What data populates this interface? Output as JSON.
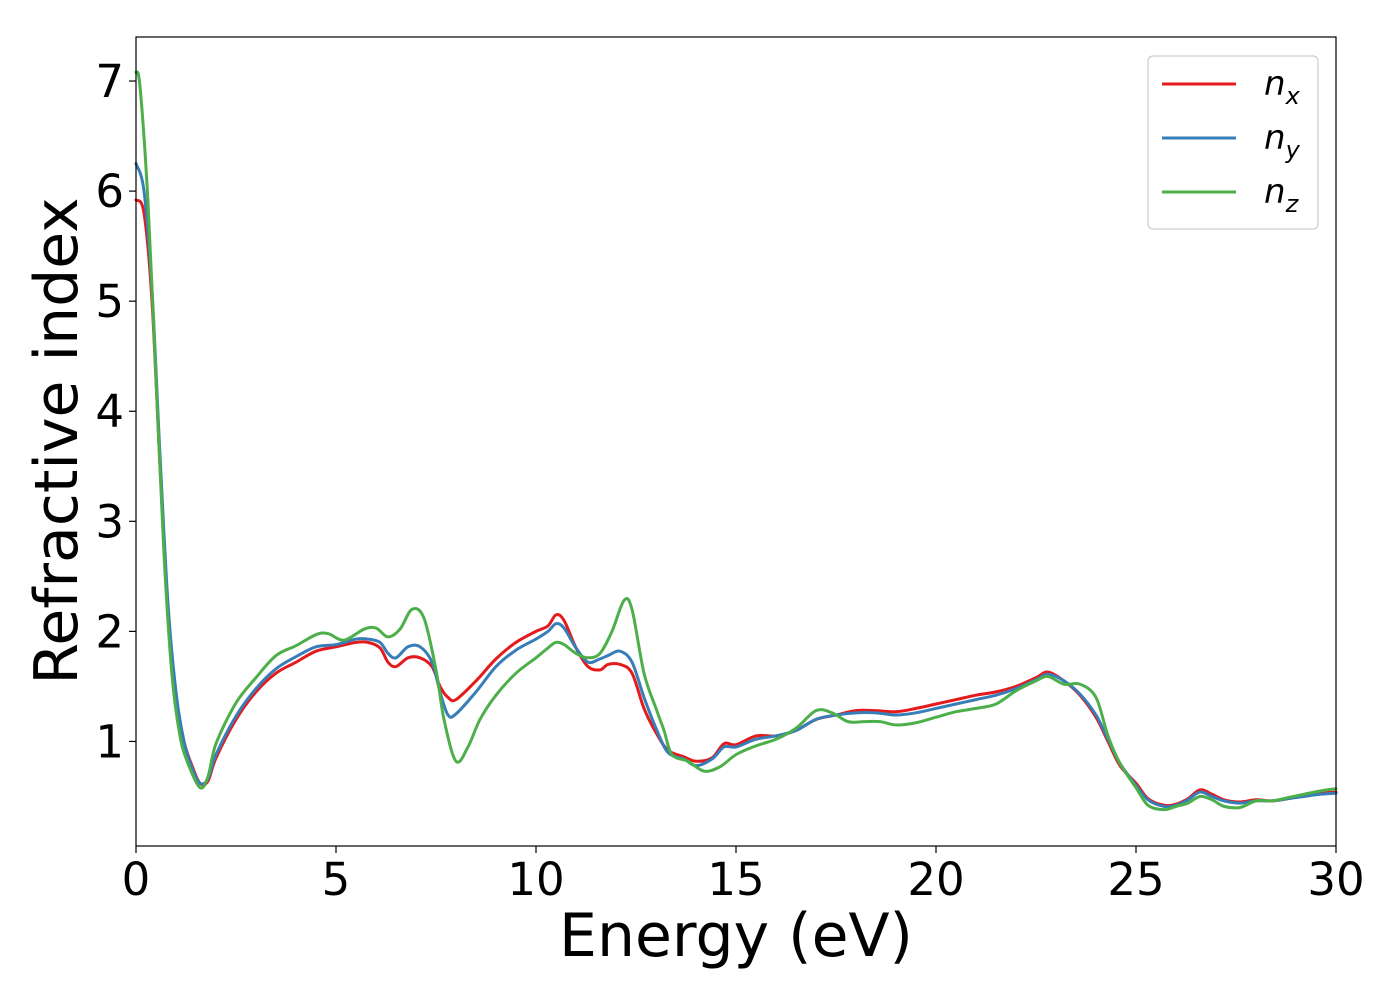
{
  "chart_data": {
    "type": "line",
    "xlabel": "Energy (eV)",
    "ylabel": "Refractive index",
    "xlim": [
      0,
      30
    ],
    "ylim": [
      0.05,
      7.4
    ],
    "xticks": [
      "0",
      "5",
      "10",
      "15",
      "20",
      "25",
      "30"
    ],
    "yticks": [
      "1",
      "2",
      "3",
      "4",
      "5",
      "6",
      "7"
    ],
    "legend_position": "top-right",
    "grid": false,
    "series": [
      {
        "name": "n",
        "subscript": "x",
        "color": "#e41a1c",
        "points": [
          [
            0,
            5.92
          ],
          [
            0.2,
            5.8
          ],
          [
            0.4,
            5.0
          ],
          [
            0.6,
            3.5
          ],
          [
            0.8,
            2.2
          ],
          [
            1.0,
            1.4
          ],
          [
            1.2,
            1.0
          ],
          [
            1.4,
            0.78
          ],
          [
            1.6,
            0.62
          ],
          [
            1.8,
            0.64
          ],
          [
            2.0,
            0.85
          ],
          [
            2.5,
            1.2
          ],
          [
            3.0,
            1.45
          ],
          [
            3.5,
            1.62
          ],
          [
            4.0,
            1.72
          ],
          [
            4.5,
            1.82
          ],
          [
            5.0,
            1.86
          ],
          [
            5.5,
            1.9
          ],
          [
            5.8,
            1.9
          ],
          [
            6.1,
            1.85
          ],
          [
            6.3,
            1.72
          ],
          [
            6.5,
            1.68
          ],
          [
            6.8,
            1.76
          ],
          [
            7.1,
            1.76
          ],
          [
            7.4,
            1.68
          ],
          [
            7.6,
            1.5
          ],
          [
            7.8,
            1.4
          ],
          [
            8.0,
            1.38
          ],
          [
            8.5,
            1.55
          ],
          [
            9.0,
            1.75
          ],
          [
            9.5,
            1.9
          ],
          [
            10.0,
            2.0
          ],
          [
            10.3,
            2.05
          ],
          [
            10.5,
            2.15
          ],
          [
            10.7,
            2.1
          ],
          [
            11.0,
            1.85
          ],
          [
            11.3,
            1.68
          ],
          [
            11.6,
            1.65
          ],
          [
            11.8,
            1.7
          ],
          [
            12.1,
            1.7
          ],
          [
            12.4,
            1.62
          ],
          [
            12.7,
            1.3
          ],
          [
            13.0,
            1.08
          ],
          [
            13.3,
            0.92
          ],
          [
            13.7,
            0.86
          ],
          [
            14.0,
            0.82
          ],
          [
            14.4,
            0.85
          ],
          [
            14.7,
            0.98
          ],
          [
            15.0,
            0.97
          ],
          [
            15.5,
            1.05
          ],
          [
            16.0,
            1.05
          ],
          [
            16.5,
            1.1
          ],
          [
            17.0,
            1.2
          ],
          [
            17.5,
            1.24
          ],
          [
            18.0,
            1.28
          ],
          [
            18.5,
            1.28
          ],
          [
            19.0,
            1.27
          ],
          [
            19.5,
            1.3
          ],
          [
            20.0,
            1.34
          ],
          [
            20.5,
            1.38
          ],
          [
            21.0,
            1.42
          ],
          [
            21.5,
            1.45
          ],
          [
            22.0,
            1.5
          ],
          [
            22.5,
            1.58
          ],
          [
            22.8,
            1.63
          ],
          [
            23.2,
            1.55
          ],
          [
            23.6,
            1.42
          ],
          [
            24.0,
            1.22
          ],
          [
            24.3,
            1.0
          ],
          [
            24.6,
            0.78
          ],
          [
            25.0,
            0.62
          ],
          [
            25.3,
            0.48
          ],
          [
            25.7,
            0.42
          ],
          [
            26.0,
            0.43
          ],
          [
            26.3,
            0.48
          ],
          [
            26.6,
            0.56
          ],
          [
            26.9,
            0.52
          ],
          [
            27.2,
            0.47
          ],
          [
            27.6,
            0.45
          ],
          [
            28.0,
            0.47
          ],
          [
            28.4,
            0.46
          ],
          [
            28.8,
            0.48
          ],
          [
            29.2,
            0.51
          ],
          [
            29.6,
            0.53
          ],
          [
            30.0,
            0.54
          ]
        ]
      },
      {
        "name": "n",
        "subscript": "y",
        "color": "#377eb8",
        "points": [
          [
            0,
            6.25
          ],
          [
            0.2,
            6.0
          ],
          [
            0.4,
            5.1
          ],
          [
            0.6,
            3.6
          ],
          [
            0.8,
            2.25
          ],
          [
            1.0,
            1.45
          ],
          [
            1.2,
            1.0
          ],
          [
            1.4,
            0.76
          ],
          [
            1.6,
            0.62
          ],
          [
            1.8,
            0.66
          ],
          [
            2.0,
            0.88
          ],
          [
            2.5,
            1.23
          ],
          [
            3.0,
            1.48
          ],
          [
            3.5,
            1.66
          ],
          [
            4.0,
            1.77
          ],
          [
            4.5,
            1.86
          ],
          [
            5.0,
            1.88
          ],
          [
            5.5,
            1.93
          ],
          [
            5.8,
            1.93
          ],
          [
            6.1,
            1.9
          ],
          [
            6.3,
            1.8
          ],
          [
            6.5,
            1.76
          ],
          [
            6.8,
            1.86
          ],
          [
            7.1,
            1.86
          ],
          [
            7.4,
            1.72
          ],
          [
            7.6,
            1.45
          ],
          [
            7.8,
            1.24
          ],
          [
            8.0,
            1.25
          ],
          [
            8.5,
            1.45
          ],
          [
            9.0,
            1.68
          ],
          [
            9.5,
            1.83
          ],
          [
            10.0,
            1.93
          ],
          [
            10.3,
            2.0
          ],
          [
            10.5,
            2.07
          ],
          [
            10.7,
            2.03
          ],
          [
            11.0,
            1.85
          ],
          [
            11.3,
            1.72
          ],
          [
            11.6,
            1.75
          ],
          [
            11.8,
            1.78
          ],
          [
            12.1,
            1.82
          ],
          [
            12.4,
            1.72
          ],
          [
            12.7,
            1.4
          ],
          [
            13.0,
            1.12
          ],
          [
            13.3,
            0.9
          ],
          [
            13.7,
            0.84
          ],
          [
            14.0,
            0.78
          ],
          [
            14.4,
            0.84
          ],
          [
            14.7,
            0.95
          ],
          [
            15.0,
            0.95
          ],
          [
            15.5,
            1.02
          ],
          [
            16.0,
            1.05
          ],
          [
            16.5,
            1.1
          ],
          [
            17.0,
            1.2
          ],
          [
            17.5,
            1.24
          ],
          [
            18.0,
            1.26
          ],
          [
            18.5,
            1.26
          ],
          [
            19.0,
            1.24
          ],
          [
            19.5,
            1.26
          ],
          [
            20.0,
            1.3
          ],
          [
            20.5,
            1.34
          ],
          [
            21.0,
            1.38
          ],
          [
            21.5,
            1.42
          ],
          [
            22.0,
            1.48
          ],
          [
            22.5,
            1.56
          ],
          [
            22.8,
            1.61
          ],
          [
            23.2,
            1.55
          ],
          [
            23.6,
            1.43
          ],
          [
            24.0,
            1.24
          ],
          [
            24.3,
            1.02
          ],
          [
            24.6,
            0.8
          ],
          [
            25.0,
            0.6
          ],
          [
            25.3,
            0.47
          ],
          [
            25.7,
            0.41
          ],
          [
            26.0,
            0.42
          ],
          [
            26.3,
            0.47
          ],
          [
            26.6,
            0.54
          ],
          [
            26.9,
            0.5
          ],
          [
            27.2,
            0.46
          ],
          [
            27.6,
            0.44
          ],
          [
            28.0,
            0.46
          ],
          [
            28.4,
            0.46
          ],
          [
            28.8,
            0.48
          ],
          [
            29.2,
            0.5
          ],
          [
            29.6,
            0.52
          ],
          [
            30.0,
            0.53
          ]
        ]
      },
      {
        "name": "n",
        "subscript": "z",
        "color": "#4daf4a",
        "points": [
          [
            0,
            7.08
          ],
          [
            0.1,
            6.95
          ],
          [
            0.3,
            5.9
          ],
          [
            0.5,
            4.3
          ],
          [
            0.7,
            2.7
          ],
          [
            0.9,
            1.6
          ],
          [
            1.1,
            1.05
          ],
          [
            1.3,
            0.8
          ],
          [
            1.6,
            0.58
          ],
          [
            1.8,
            0.68
          ],
          [
            2.0,
            0.98
          ],
          [
            2.5,
            1.35
          ],
          [
            3.0,
            1.58
          ],
          [
            3.5,
            1.78
          ],
          [
            4.0,
            1.87
          ],
          [
            4.5,
            1.97
          ],
          [
            4.8,
            1.98
          ],
          [
            5.2,
            1.92
          ],
          [
            5.7,
            2.02
          ],
          [
            6.0,
            2.03
          ],
          [
            6.3,
            1.95
          ],
          [
            6.6,
            2.02
          ],
          [
            6.9,
            2.2
          ],
          [
            7.2,
            2.12
          ],
          [
            7.5,
            1.65
          ],
          [
            7.7,
            1.2
          ],
          [
            8.0,
            0.82
          ],
          [
            8.3,
            0.95
          ],
          [
            8.6,
            1.2
          ],
          [
            9.0,
            1.42
          ],
          [
            9.5,
            1.62
          ],
          [
            10.0,
            1.76
          ],
          [
            10.3,
            1.85
          ],
          [
            10.5,
            1.9
          ],
          [
            10.7,
            1.88
          ],
          [
            11.0,
            1.8
          ],
          [
            11.3,
            1.76
          ],
          [
            11.6,
            1.8
          ],
          [
            11.9,
            2.0
          ],
          [
            12.2,
            2.28
          ],
          [
            12.4,
            2.2
          ],
          [
            12.7,
            1.62
          ],
          [
            13.0,
            1.3
          ],
          [
            13.2,
            1.1
          ],
          [
            13.4,
            0.88
          ],
          [
            13.8,
            0.82
          ],
          [
            14.2,
            0.73
          ],
          [
            14.6,
            0.77
          ],
          [
            15.0,
            0.88
          ],
          [
            15.5,
            0.96
          ],
          [
            16.0,
            1.02
          ],
          [
            16.5,
            1.12
          ],
          [
            17.0,
            1.28
          ],
          [
            17.4,
            1.26
          ],
          [
            17.8,
            1.18
          ],
          [
            18.2,
            1.18
          ],
          [
            18.6,
            1.18
          ],
          [
            19.0,
            1.15
          ],
          [
            19.5,
            1.17
          ],
          [
            20.0,
            1.22
          ],
          [
            20.5,
            1.27
          ],
          [
            21.0,
            1.3
          ],
          [
            21.5,
            1.34
          ],
          [
            22.0,
            1.46
          ],
          [
            22.5,
            1.55
          ],
          [
            22.8,
            1.59
          ],
          [
            23.2,
            1.52
          ],
          [
            23.6,
            1.52
          ],
          [
            24.0,
            1.4
          ],
          [
            24.3,
            1.05
          ],
          [
            24.6,
            0.8
          ],
          [
            25.0,
            0.58
          ],
          [
            25.3,
            0.42
          ],
          [
            25.7,
            0.38
          ],
          [
            26.0,
            0.41
          ],
          [
            26.3,
            0.44
          ],
          [
            26.6,
            0.5
          ],
          [
            26.9,
            0.47
          ],
          [
            27.2,
            0.41
          ],
          [
            27.6,
            0.4
          ],
          [
            28.0,
            0.46
          ],
          [
            28.4,
            0.46
          ],
          [
            28.8,
            0.49
          ],
          [
            29.2,
            0.52
          ],
          [
            29.6,
            0.55
          ],
          [
            30.0,
            0.57
          ]
        ]
      }
    ]
  }
}
